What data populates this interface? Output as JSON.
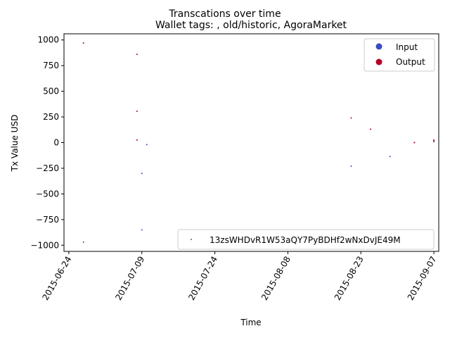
{
  "chart_data": {
    "type": "scatter",
    "title": "Transcations over time",
    "subtitle": "Wallet tags: , old/historic, AgoraMarket",
    "xlabel": "Time",
    "ylabel": "Tx Value USD",
    "xlim": [
      "2015-06-23",
      "2015-09-08"
    ],
    "ylim": [
      -1060,
      1060
    ],
    "x_ticks": [
      "2015-06-24",
      "2015-07-09",
      "2015-07-24",
      "2015-08-08",
      "2015-08-23",
      "2015-09-07"
    ],
    "y_ticks": [
      1000,
      750,
      500,
      250,
      0,
      -250,
      -500,
      -750,
      -1000
    ],
    "y_tick_labels": [
      "1000",
      "750",
      "500",
      "250",
      "0",
      "−250",
      "−500",
      "−750",
      "−1000"
    ],
    "x_tick_rotation": 60,
    "grid": false,
    "legends": [
      {
        "placement": "upper-right",
        "entries": [
          {
            "label": "Input",
            "color": "#3b4cc0"
          },
          {
            "label": "Output",
            "color": "#b40426"
          }
        ]
      },
      {
        "placement": "lower-right",
        "entries": [
          {
            "label": "13zsWHDvR1W53aQY7PyBDHf2wNxDvJE49M",
            "color": "#1f77b4"
          }
        ]
      }
    ],
    "series": [
      {
        "name": "Input",
        "color": "#3b4cc0",
        "points": [
          {
            "x": "2015-06-27",
            "y": -970
          },
          {
            "x": "2015-07-09",
            "y": -300
          },
          {
            "x": "2015-07-09",
            "y": -850
          },
          {
            "x": "2015-07-10",
            "y": -20
          },
          {
            "x": "2015-08-21",
            "y": -230
          },
          {
            "x": "2015-08-29",
            "y": -135
          },
          {
            "x": "2015-09-03",
            "y": 0
          },
          {
            "x": "2015-09-07",
            "y": 10
          }
        ]
      },
      {
        "name": "Output",
        "color": "#b40426",
        "points": [
          {
            "x": "2015-06-27",
            "y": 970
          },
          {
            "x": "2015-07-08",
            "y": 860
          },
          {
            "x": "2015-07-08",
            "y": 305
          },
          {
            "x": "2015-07-08",
            "y": 25
          },
          {
            "x": "2015-08-21",
            "y": 240
          },
          {
            "x": "2015-08-25",
            "y": 130
          },
          {
            "x": "2015-09-03",
            "y": 0
          },
          {
            "x": "2015-09-07",
            "y": 25
          },
          {
            "x": "2015-09-07",
            "y": 15
          }
        ]
      }
    ]
  }
}
